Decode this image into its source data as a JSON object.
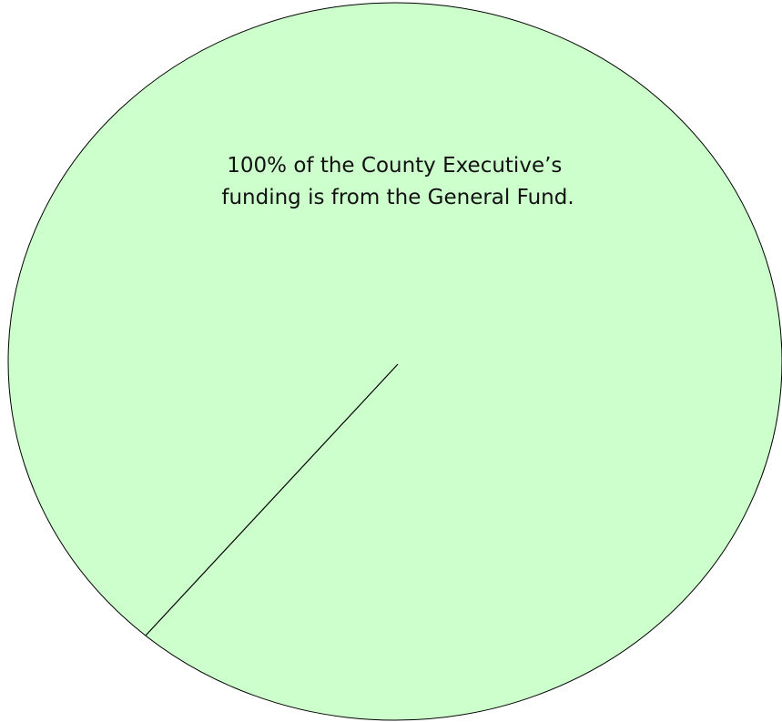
{
  "chart_data": {
    "type": "pie",
    "title": "",
    "categories": [
      "General Fund"
    ],
    "values": [
      100
    ],
    "colors": [
      "#ccffcc"
    ],
    "stroke_color": "#000000",
    "annotation": [
      "100% of the County Executive’s",
      "funding is from the General Fund."
    ],
    "legend": "none"
  }
}
